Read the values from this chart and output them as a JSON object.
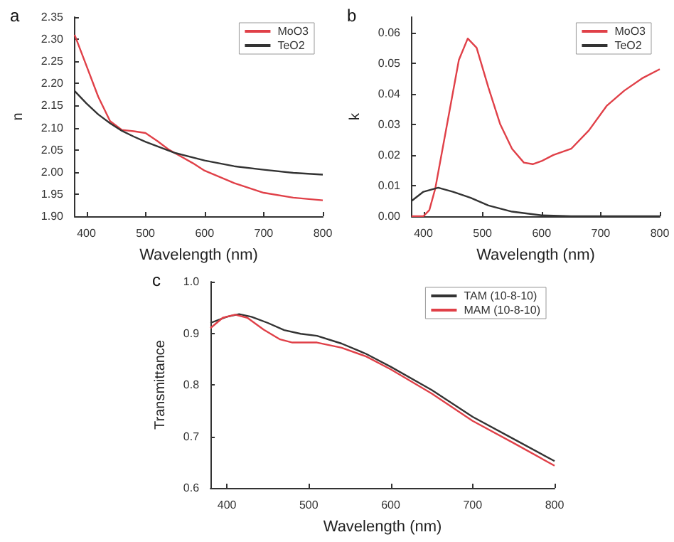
{
  "chart_data": [
    {
      "type": "line",
      "title": "a",
      "xlabel": "Wavelength (nm)",
      "ylabel": "n",
      "xlim": [
        380,
        800
      ],
      "xticks": [
        400,
        500,
        600,
        700,
        800
      ],
      "ylim": [
        1.9,
        2.35
      ],
      "yticks": [
        {
          "value": 1.9,
          "label": "1.90"
        },
        {
          "value": 1.95,
          "label": "1.95"
        },
        {
          "value": 2.0,
          "label": "2.00"
        },
        {
          "value": 2.05,
          "label": "2.05"
        },
        {
          "value": 2.1,
          "label": "2.10"
        },
        {
          "value": 2.15,
          "label": "2.15"
        },
        {
          "value": 2.2,
          "label": "2.20"
        },
        {
          "value": 2.25,
          "label": "2.25"
        },
        {
          "value": 2.3,
          "label": "2.30"
        },
        {
          "value": 2.35,
          "label": "2.35"
        }
      ],
      "legend": "top right",
      "grid": false,
      "series": [
        {
          "name": "MoO3",
          "color": "#e04048",
          "x": [
            380,
            400,
            420,
            440,
            460,
            480,
            500,
            520,
            540,
            560,
            580,
            600,
            650,
            700,
            750,
            800
          ],
          "values": [
            2.31,
            2.24,
            2.17,
            2.115,
            2.095,
            2.092,
            2.088,
            2.07,
            2.05,
            2.035,
            2.02,
            2.003,
            1.975,
            1.953,
            1.942,
            1.936
          ]
        },
        {
          "name": "TeO2",
          "color": "#333333",
          "x": [
            380,
            400,
            420,
            440,
            460,
            480,
            500,
            550,
            600,
            650,
            700,
            750,
            800
          ],
          "values": [
            2.183,
            2.155,
            2.13,
            2.11,
            2.093,
            2.08,
            2.068,
            2.043,
            2.026,
            2.013,
            2.005,
            1.998,
            1.994
          ]
        }
      ]
    },
    {
      "type": "line",
      "title": "b",
      "xlabel": "Wavelength (nm)",
      "ylabel": "k",
      "xlim": [
        380,
        800
      ],
      "xticks": [
        400,
        500,
        600,
        700,
        800
      ],
      "ylim": [
        0,
        0.065
      ],
      "yticks": [
        {
          "value": 0,
          "label": "0.00"
        },
        0.01,
        0.02,
        0.03,
        0.04,
        0.05,
        0.06
      ],
      "legend": "top right",
      "grid": false,
      "series": [
        {
          "name": "MoO3",
          "color": "#e04048",
          "x": [
            380,
            400,
            410,
            420,
            440,
            460,
            475,
            490,
            510,
            530,
            550,
            570,
            585,
            600,
            620,
            650,
            680,
            710,
            740,
            770,
            800
          ],
          "values": [
            0,
            0,
            0.002,
            0.009,
            0.03,
            0.051,
            0.058,
            0.055,
            0.042,
            0.03,
            0.022,
            0.0175,
            0.017,
            0.018,
            0.02,
            0.022,
            0.028,
            0.036,
            0.041,
            0.045,
            0.048
          ]
        },
        {
          "name": "TeO2",
          "color": "#333333",
          "x": [
            380,
            400,
            425,
            450,
            480,
            510,
            550,
            600,
            650,
            800
          ],
          "values": [
            0.005,
            0.008,
            0.0093,
            0.008,
            0.006,
            0.0035,
            0.0015,
            0.0003,
            0,
            0
          ]
        }
      ]
    },
    {
      "type": "line",
      "title": "c",
      "xlabel": "Wavelength (nm)",
      "ylabel": "Transmittance",
      "xlim": [
        380,
        800
      ],
      "xticks": [
        400,
        500,
        600,
        700,
        800
      ],
      "ylim": [
        0.6,
        1.0
      ],
      "yticks": [
        0.6,
        0.7,
        0.8,
        0.9,
        {
          "value": 1.0,
          "label": "1.0"
        }
      ],
      "legend": "top right",
      "grid": false,
      "series": [
        {
          "name": "TAM (10-8-10)",
          "color": "#333333",
          "x": [
            380,
            400,
            415,
            430,
            450,
            470,
            490,
            510,
            540,
            570,
            600,
            650,
            700,
            750,
            800
          ],
          "values": [
            0.92,
            0.932,
            0.937,
            0.932,
            0.92,
            0.906,
            0.899,
            0.895,
            0.88,
            0.86,
            0.835,
            0.79,
            0.738,
            0.695,
            0.652
          ]
        },
        {
          "name": "MAM (10-8-10)",
          "color": "#e04048",
          "x": [
            380,
            395,
            410,
            425,
            445,
            465,
            480,
            510,
            540,
            570,
            600,
            650,
            700,
            750,
            800
          ],
          "values": [
            0.91,
            0.93,
            0.936,
            0.93,
            0.907,
            0.888,
            0.882,
            0.882,
            0.872,
            0.855,
            0.83,
            0.783,
            0.73,
            0.687,
            0.643
          ]
        }
      ]
    }
  ]
}
